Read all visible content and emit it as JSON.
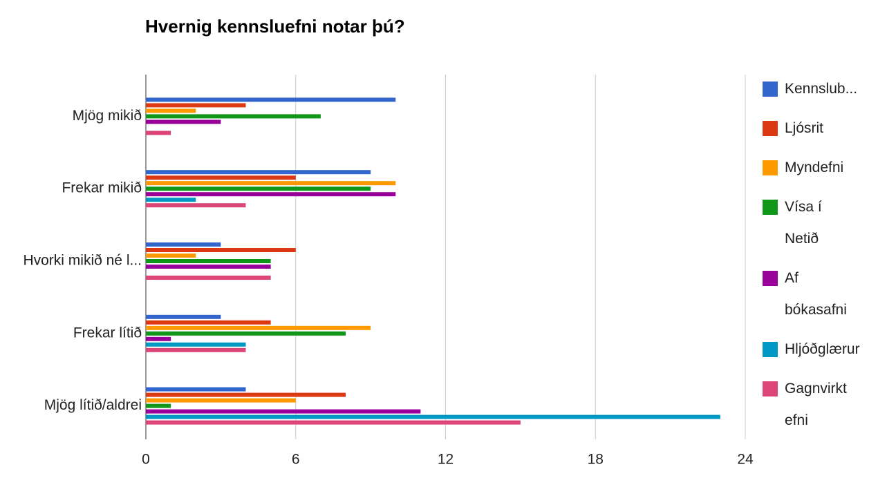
{
  "chart_data": {
    "type": "bar",
    "orientation": "horizontal",
    "title": "Hvernig kennsluefni notar þú?",
    "categories": [
      "Mjög mikið",
      "Frekar mikið",
      "Hvorki mikið né l...",
      "Frekar lítið",
      "Mjög lítið/aldrei"
    ],
    "series": [
      {
        "name": "Kennslub...",
        "color": "#3366cc",
        "values": [
          10,
          9,
          3,
          3,
          4
        ]
      },
      {
        "name": "Ljósrit",
        "color": "#dc3912",
        "values": [
          4,
          6,
          6,
          5,
          8
        ]
      },
      {
        "name": "Myndefni",
        "color": "#ff9900",
        "values": [
          2,
          10,
          2,
          9,
          6
        ]
      },
      {
        "name": "Vísa í Netið",
        "color": "#109618",
        "values": [
          7,
          9,
          5,
          8,
          1
        ]
      },
      {
        "name": "Af bókasafni",
        "color": "#990099",
        "values": [
          3,
          10,
          5,
          1,
          11
        ]
      },
      {
        "name": "Hljóðglærur",
        "color": "#0099c6",
        "values": [
          0,
          2,
          0,
          4,
          23
        ]
      },
      {
        "name": "Gagnvirkt efni",
        "color": "#dd4477",
        "values": [
          1,
          4,
          5,
          4,
          15
        ]
      }
    ],
    "xlim": [
      0,
      24
    ],
    "xticks": [
      0,
      6,
      12,
      18,
      24
    ],
    "grid": true,
    "legend": "right"
  }
}
